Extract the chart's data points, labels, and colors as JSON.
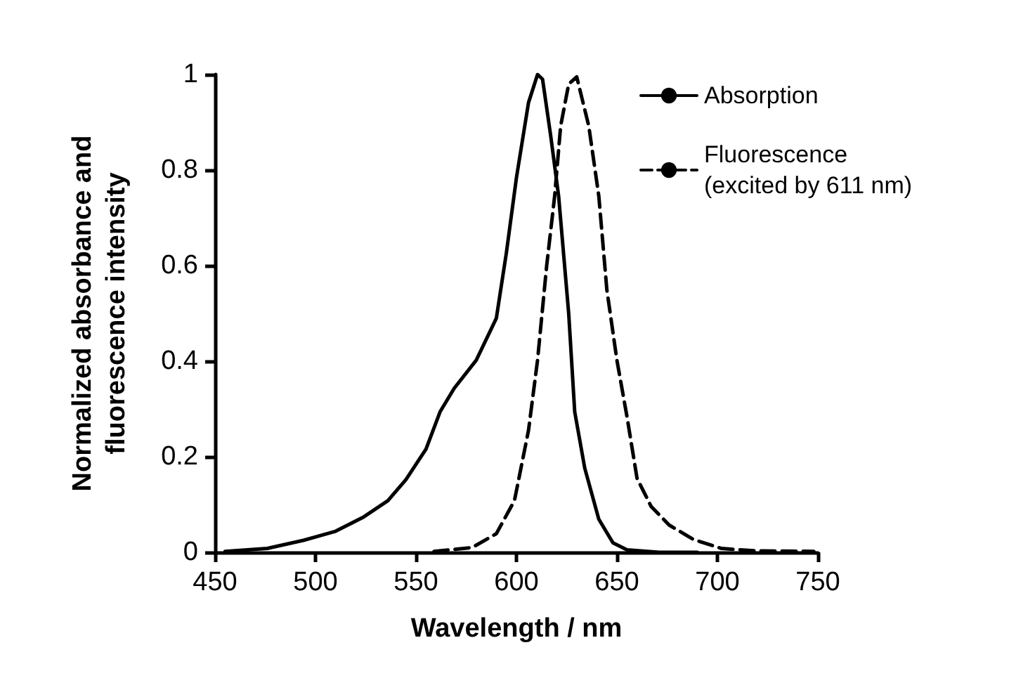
{
  "chart_data": {
    "type": "line",
    "xlabel": "Wavelength / nm",
    "ylabel": "Normalized absorbance and\nfluorescence intensity",
    "xlim": [
      450,
      750
    ],
    "xticks": [
      450,
      500,
      550,
      600,
      650,
      700,
      750
    ],
    "ylim": [
      0,
      1
    ],
    "yticks": [
      0,
      0.2,
      0.4,
      0.6,
      0.8,
      1
    ],
    "grid": false,
    "legend": "top right",
    "marker": "none",
    "series": [
      {
        "name": "Absorption",
        "color": "#000000",
        "line_style": "solid",
        "x": [
          455,
          476,
          494,
          510,
          524,
          536,
          545,
          555,
          562,
          569,
          580,
          590,
          595,
          600,
          606,
          610.5,
          613,
          617,
          621,
          626,
          629,
          634,
          641,
          648,
          655,
          671,
          690
        ],
        "values": [
          0.002,
          0.008,
          0.025,
          0.044,
          0.074,
          0.108,
          0.152,
          0.216,
          0.294,
          0.343,
          0.402,
          0.49,
          0.627,
          0.784,
          0.941,
          1,
          0.99,
          0.873,
          0.745,
          0.5,
          0.294,
          0.176,
          0.069,
          0.02,
          0.005,
          0,
          0
        ]
      },
      {
        "name": "Fluorescence\n(excited by 611 nm)",
        "color": "#000000",
        "line_style": "dashed",
        "x": [
          559,
          578,
          590,
          599,
          606,
          610.5,
          615,
          619,
          622,
          626,
          630,
          636,
          641,
          645,
          650,
          655,
          660,
          667,
          676,
          688,
          702,
          719,
          748
        ],
        "values": [
          0.002,
          0.01,
          0.039,
          0.108,
          0.255,
          0.402,
          0.598,
          0.745,
          0.892,
          0.98,
          0.995,
          0.892,
          0.745,
          0.549,
          0.402,
          0.284,
          0.155,
          0.096,
          0.057,
          0.027,
          0.008,
          0.003,
          0.002
        ]
      }
    ]
  }
}
